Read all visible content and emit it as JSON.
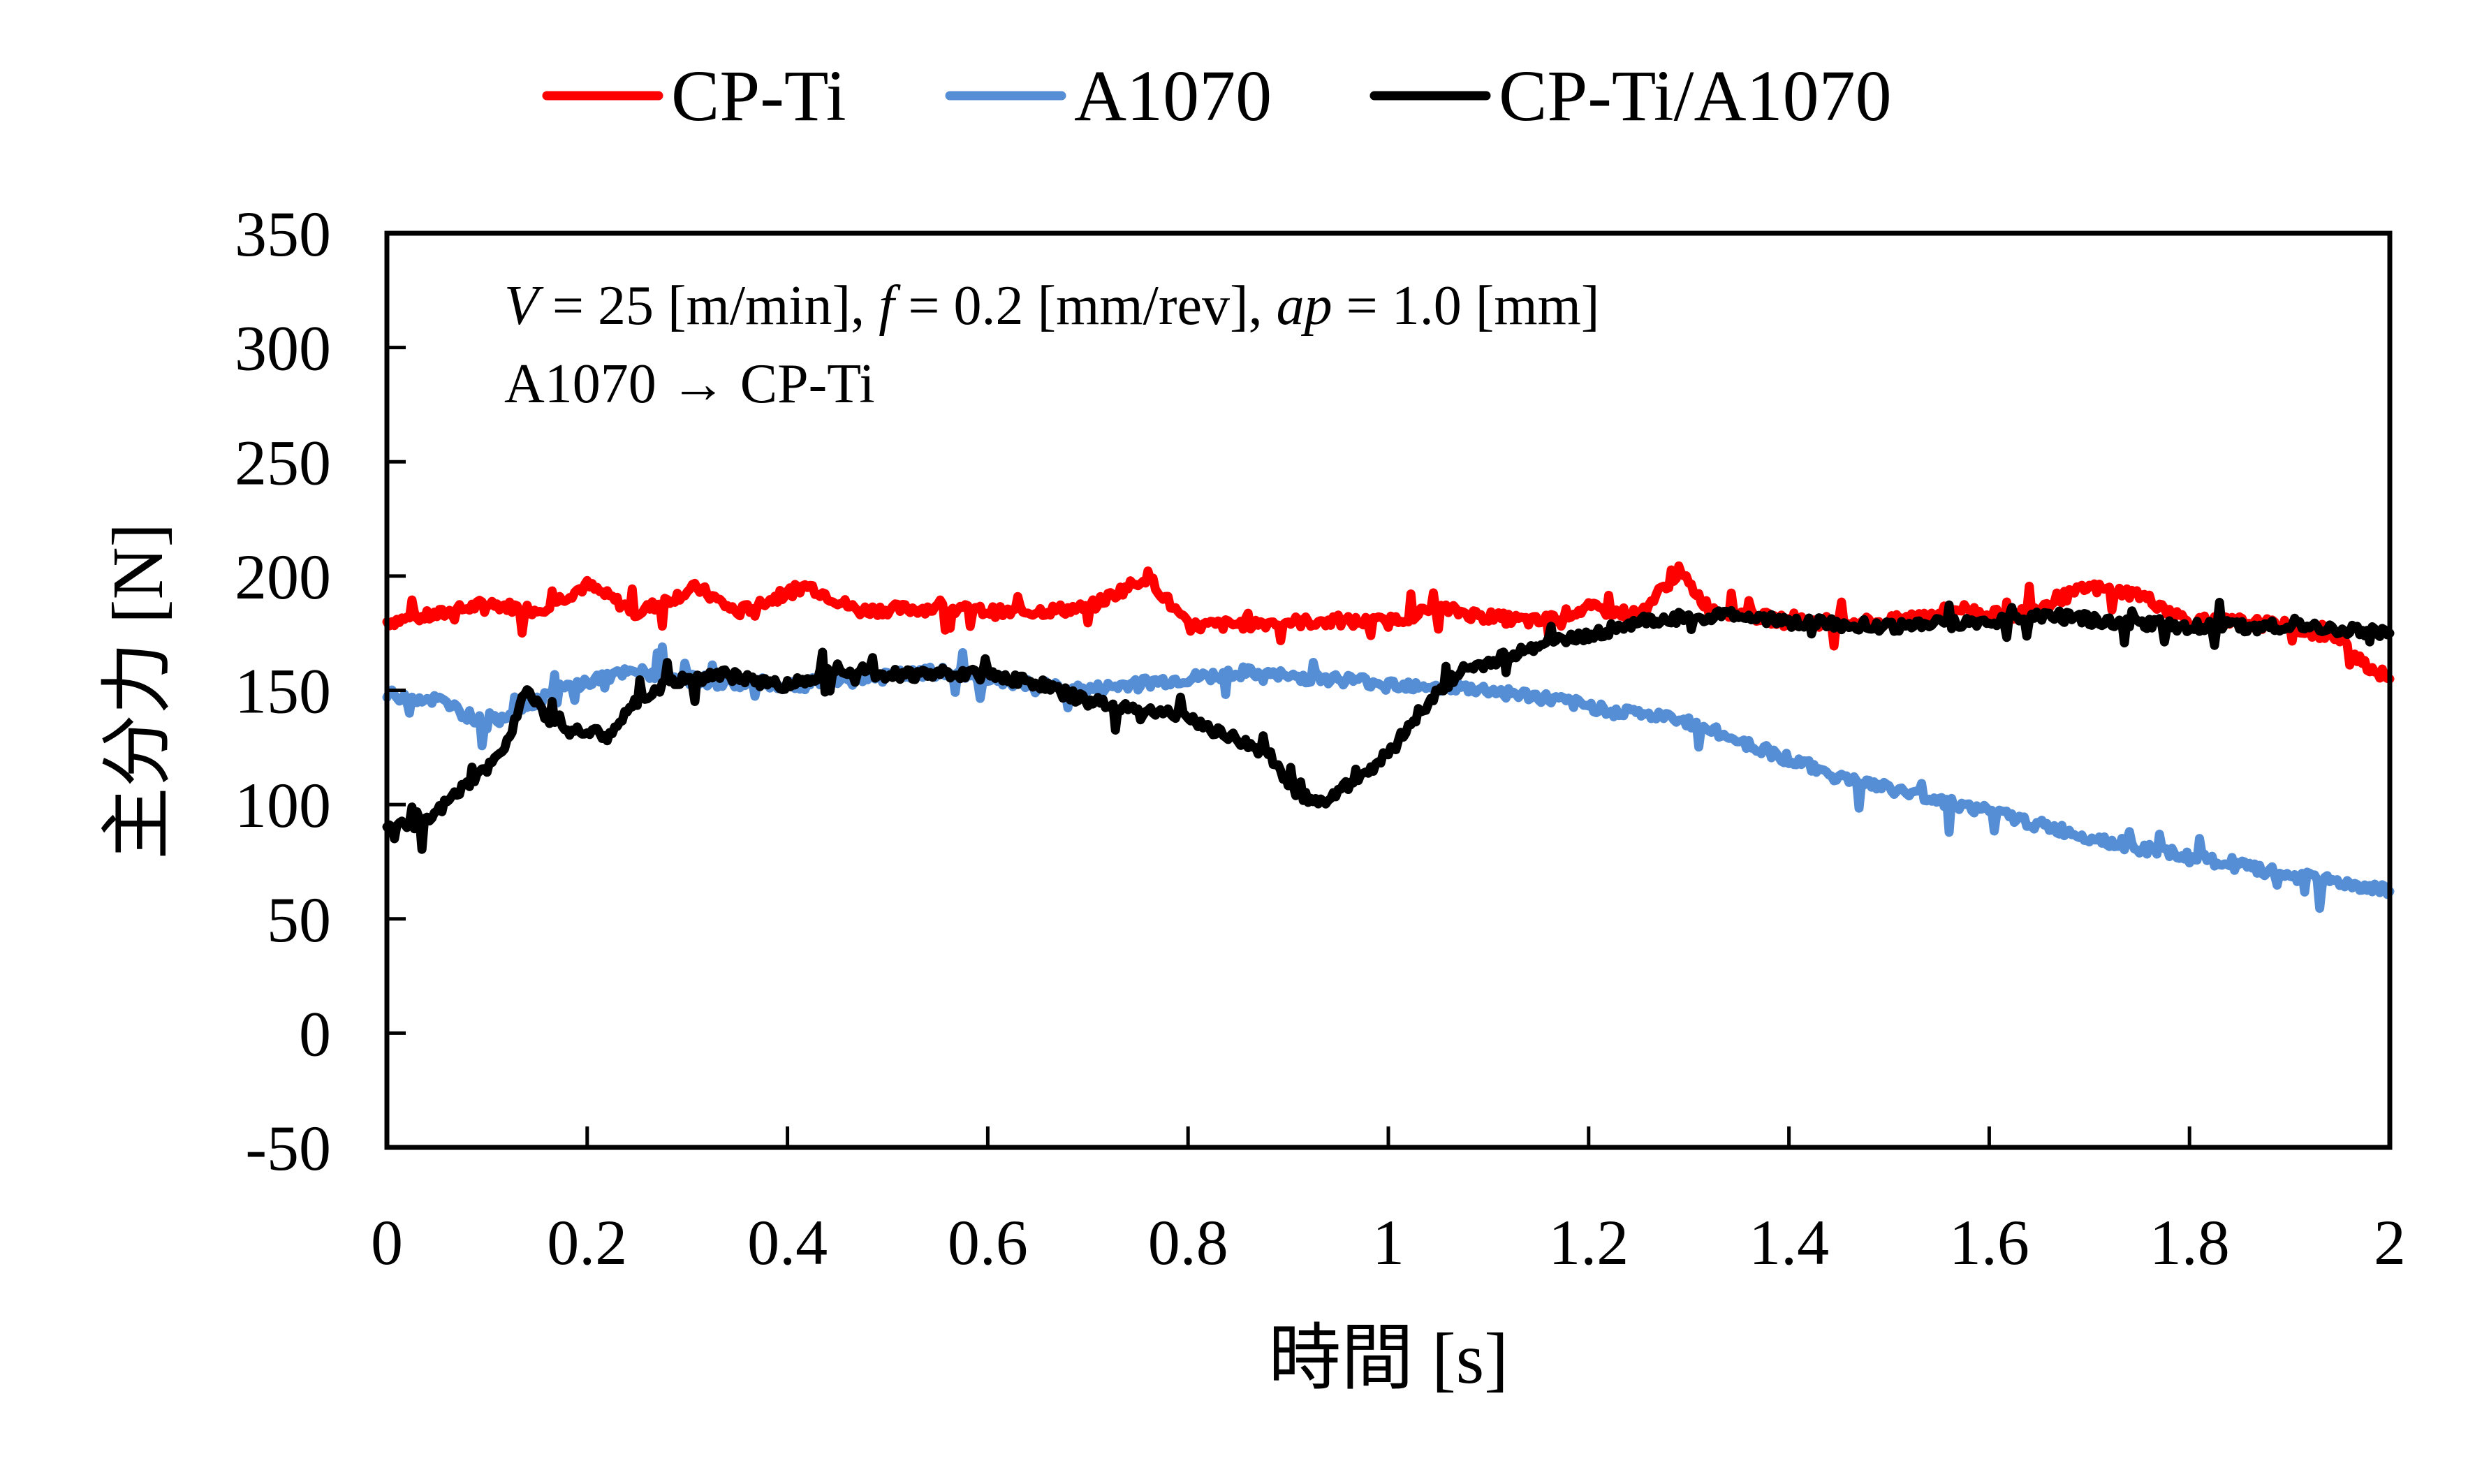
{
  "chart_data": {
    "type": "line",
    "title": "",
    "xlabel": "時間 [s]",
    "ylabel": "主分力 [N]",
    "xlim": [
      0,
      2
    ],
    "ylim": [
      -50,
      350
    ],
    "x_ticks": [
      "0",
      "0.2",
      "0.4",
      "0.6",
      "0.8",
      "1",
      "1.2",
      "1.4",
      "1.6",
      "1.8",
      "2"
    ],
    "x_tick_values": [
      0,
      0.2,
      0.4,
      0.6,
      0.8,
      1.0,
      1.2,
      1.4,
      1.6,
      1.8,
      2.0
    ],
    "y_ticks": [
      "350",
      "300",
      "250",
      "200",
      "150",
      "100",
      "50",
      "0",
      "-50"
    ],
    "y_tick_values": [
      350,
      300,
      250,
      200,
      150,
      100,
      50,
      0,
      -50
    ],
    "grid": false,
    "legend_position": "top",
    "annotations": {
      "line1": {
        "v_sym": "V",
        "v_rest": " = 25 [m/min], ",
        "f_sym": "f",
        "f_rest": " = 0.2 [mm/rev], ",
        "ap_sym": "ap",
        "ap_rest": " = 1.0 [mm]"
      },
      "line2": "A1070 → CP-Ti"
    },
    "series": [
      {
        "name": "CP-Ti",
        "color": "#ff0000",
        "x": [
          0,
          0.05,
          0.1,
          0.15,
          0.2,
          0.25,
          0.31,
          0.35,
          0.42,
          0.47,
          0.55,
          0.62,
          0.7,
          0.76,
          0.8,
          0.9,
          1.0,
          1.05,
          1.1,
          1.15,
          1.2,
          1.25,
          1.29,
          1.32,
          1.4,
          1.5,
          1.57,
          1.62,
          1.7,
          1.75,
          1.8,
          1.85,
          1.9,
          1.95,
          1.98,
          2.0
        ],
        "y": [
          180,
          183,
          188,
          185,
          196,
          184,
          195,
          184,
          196,
          185,
          186,
          184,
          186,
          200,
          178,
          180,
          180,
          186,
          182,
          180,
          186,
          183,
          202,
          186,
          180,
          180,
          186,
          182,
          195,
          192,
          180,
          180,
          178,
          172,
          160,
          155
        ]
      },
      {
        "name": "A1070",
        "color": "#558ed5",
        "x": [
          0,
          0.05,
          0.1,
          0.13,
          0.17,
          0.22,
          0.25,
          0.3,
          0.35,
          0.4,
          0.45,
          0.5,
          0.55,
          0.6,
          0.65,
          0.7,
          0.75,
          0.8,
          0.85,
          0.9,
          0.95,
          1.0,
          1.05,
          1.1,
          1.15,
          1.2,
          1.25,
          1.3,
          1.35,
          1.4,
          1.45,
          1.5,
          1.55,
          1.6,
          1.65,
          1.7,
          1.75,
          1.8,
          1.85,
          1.9,
          1.95,
          2.0
        ],
        "y": [
          148,
          146,
          135,
          142,
          150,
          156,
          158,
          155,
          153,
          152,
          154,
          156,
          158,
          155,
          152,
          150,
          153,
          155,
          158,
          156,
          155,
          153,
          152,
          150,
          147,
          143,
          140,
          136,
          128,
          120,
          112,
          107,
          102,
          97,
          91,
          86,
          81,
          77,
          73,
          69,
          66,
          62
        ]
      },
      {
        "name": "CP-Ti/A1070",
        "color": "#000000",
        "x": [
          0,
          0.04,
          0.07,
          0.1,
          0.12,
          0.14,
          0.16,
          0.18,
          0.22,
          0.25,
          0.28,
          0.33,
          0.36,
          0.4,
          0.45,
          0.5,
          0.55,
          0.6,
          0.65,
          0.7,
          0.75,
          0.8,
          0.85,
          0.88,
          0.91,
          0.93,
          0.97,
          1.0,
          1.03,
          1.07,
          1.1,
          1.15,
          1.2,
          1.25,
          1.3,
          1.35,
          1.4,
          1.5,
          1.6,
          1.65,
          1.7,
          1.8,
          1.9,
          1.95,
          2.0
        ],
        "y": [
          90,
          92,
          105,
          115,
          128,
          152,
          138,
          133,
          130,
          145,
          153,
          157,
          155,
          152,
          160,
          157,
          157,
          157,
          153,
          145,
          142,
          138,
          128,
          122,
          105,
          100,
          112,
          122,
          140,
          158,
          162,
          170,
          174,
          180,
          182,
          183,
          180,
          178,
          180,
          183,
          181,
          178,
          178,
          177,
          175
        ]
      }
    ]
  }
}
